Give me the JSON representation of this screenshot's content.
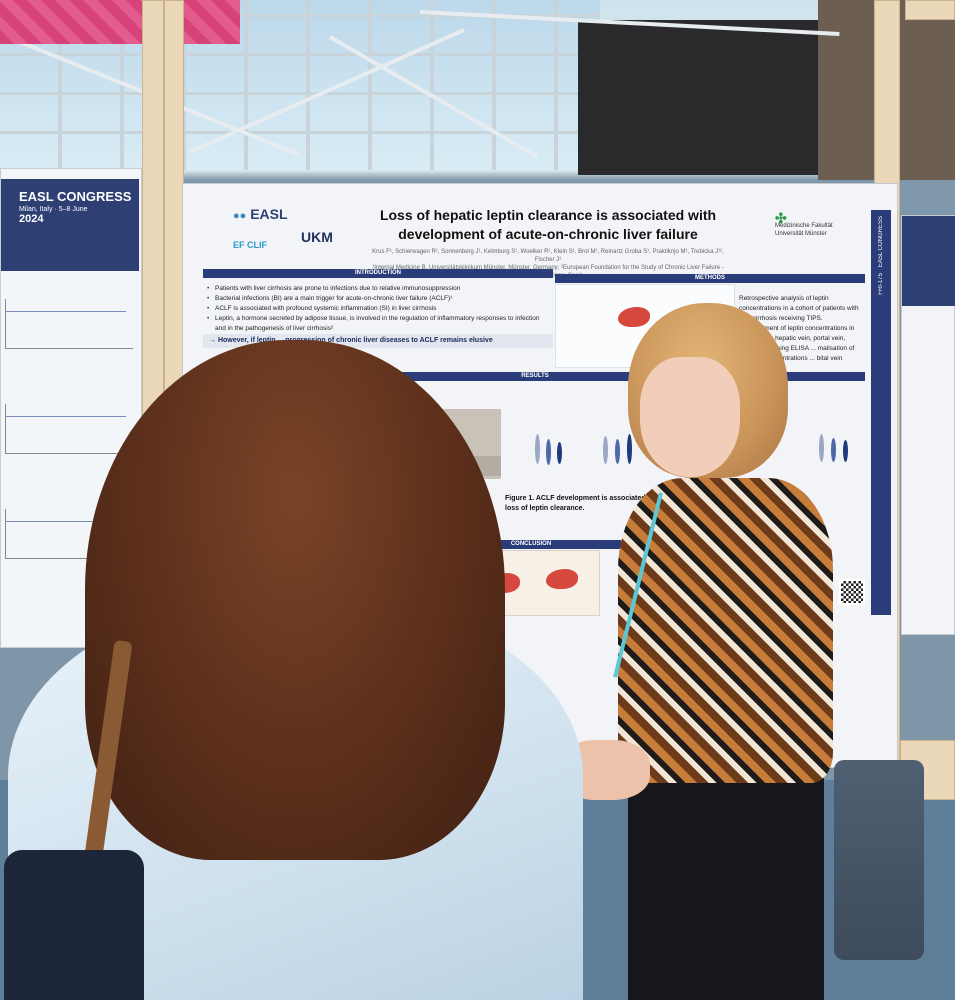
{
  "congress": {
    "name": "EASL CONGRESS",
    "year": "2024",
    "place": "Milan, Italy",
    "dates": "5–8 June"
  },
  "poster": {
    "title_line1": "Loss of hepatic leptin clearance is associated with",
    "title_line2": "development of acute-on-chronic liver failure",
    "authors": "Krus F¹, Schierwagen R¹, Sonnenberg J¹, Kelmburg S¹, Woelker R¹, Klein S¹, Brol M¹, Reinartz Groba S¹, Praktiknjo M¹, Trebicka J¹², Fischer J¹",
    "affiliations": "¹Internal Medicine B, Universitätsklinikum Münster, Münster, Germany; ²European Foundation for the Study of Chronic Liver Failure - EF CLIF, Barcelona, Spain",
    "logos": {
      "easl": "EASL",
      "efclif": "EF CLIF",
      "ukm": "UKM",
      "university": "Medizinische Fakultät Universität Münster"
    },
    "sections": {
      "introduction": "INTRODUCTION",
      "methods": "METHODS",
      "results": "RESULTS",
      "conclusion": "CONCLUSION"
    },
    "intro_bullets": [
      "Patients with liver cirrhosis are prone to infections due to relative immunosuppression",
      "Bacterial infections (BI) are a main trigger for acute-on-chronic liver failure (ACLF)¹",
      "ACLF is associated with profound systemic inflammation (SI) in liver cirrhosis",
      "Leptin, a hormone secreted by adipose tissue, is involved in the regulation of inflammatory responses to infection and in the pathogenesis of liver cirrhosis²"
    ],
    "intro_highlight": "→ However, if leptin ... progression of chronic liver diseases to ACLF remains elusive",
    "methods_text": "Retrospective analysis of leptin concentrations in a cohort of patients with liver cirrhosis receiving TIPS. Measurement of leptin concentrations in right atrium, hepatic vein, portal vein, cubital vein using ELISA ... malisation of absolute concentrations ... bital vein",
    "figure_caption_bold": "Figure 1. ACLF development is associated with loss of leptin clearance.",
    "side_strip_label": "EASL CONGRESS",
    "poster_code": "FRI-175"
  },
  "colors": {
    "navy": "#2a3d7a",
    "liver_red": "#d6473e",
    "pink_banner": "#d8427a"
  }
}
